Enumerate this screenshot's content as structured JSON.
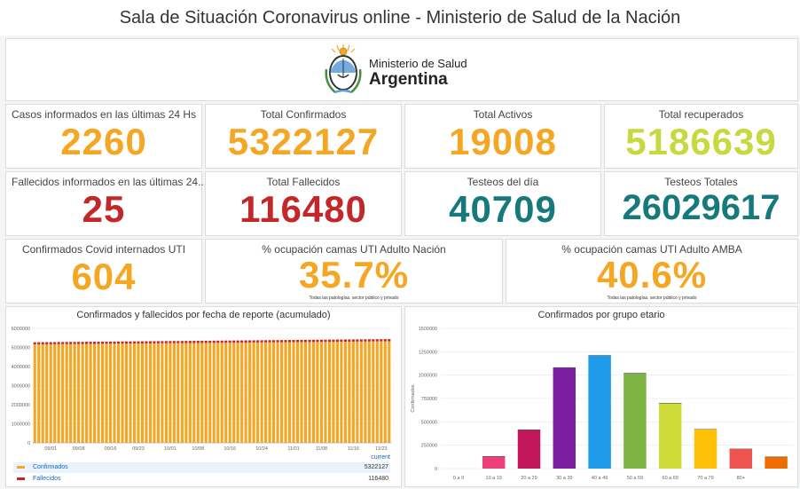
{
  "header": {
    "title": "Sala de Situación Coronavirus online - Ministerio de Salud de la Nación"
  },
  "logo": {
    "line1": "Ministerio de Salud",
    "line2": "Argentina"
  },
  "stats": {
    "casos_24h": {
      "label": "Casos informados en las últimas 24 Hs",
      "value": "2260",
      "color": "#f5a623"
    },
    "total_confirmados": {
      "label": "Total Confirmados",
      "value": "5322127",
      "color": "#f5a623"
    },
    "total_activos": {
      "label": "Total Activos",
      "value": "19008",
      "color": "#f5a623"
    },
    "total_recuperados": {
      "label": "Total recuperados",
      "value": "5186639",
      "color": "#c8d93f"
    },
    "fallecidos_24h": {
      "label": "Fallecidos informados en las últimas 24...",
      "value": "25",
      "color": "#c4272a"
    },
    "total_fallecidos": {
      "label": "Total Fallecidos",
      "value": "116480",
      "color": "#c4272a"
    },
    "testeos_dia": {
      "label": "Testeos del día",
      "value": "40709",
      "color": "#16797b"
    },
    "testeos_totales": {
      "label": "Testeos Totales",
      "value": "26029617",
      "color": "#16797b"
    },
    "internados_uti": {
      "label": "Confirmados Covid internados UTI",
      "value": "604",
      "color": "#f5a623"
    },
    "ocupacion_nacion": {
      "label": "% ocupación camas UTI Adulto Nación",
      "value": "35.7%",
      "note": "Todas las patologías, sector público y privado",
      "color": "#f5a623"
    },
    "ocupacion_amba": {
      "label": "% ocupación camas UTI Adulto AMBA",
      "value": "40.6%",
      "note": "Todas las patologías, sector público y privado",
      "color": "#f5a623"
    }
  },
  "chart_data": [
    {
      "type": "bar",
      "title": "Confirmados y fallecidos por fecha de reporte (acumulado)",
      "ylim": [
        0,
        6000000
      ],
      "y_ticks": [
        "0",
        "1000000",
        "2000000",
        "3000000",
        "4000000",
        "5000000",
        "6000000"
      ],
      "x_tick_labels": [
        "09/01",
        "09/08",
        "09/16",
        "09/23",
        "10/01",
        "10/08",
        "10/16",
        "10/24",
        "11/01",
        "11/08",
        "11/16",
        "11/23"
      ],
      "x_days": [
        "2021-08-28",
        "2021-11-25"
      ],
      "stacked": true,
      "grid": true,
      "series": [
        {
          "name": "Confirmados",
          "color": "#f5a623",
          "start": 5160000,
          "end": 5322127
        },
        {
          "name": "Fallecidos",
          "color": "#c4272a",
          "start": 111000,
          "end": 116480
        }
      ],
      "legend": {
        "header": "current",
        "placement": "bottom",
        "rows": [
          {
            "name": "Confirmados",
            "value": "5322127",
            "color": "#f5a623"
          },
          {
            "name": "Fallecidos",
            "value": "116480",
            "color": "#c4272a"
          }
        ]
      }
    },
    {
      "type": "bar",
      "title": "Confirmados por grupo etario",
      "ylabel": "Confirmados",
      "ylim": [
        0,
        1500000
      ],
      "y_ticks": [
        "0",
        "250000",
        "500000",
        "750000",
        "1000000",
        "1250000",
        "1500000"
      ],
      "grid": true,
      "categories": [
        "0 a 9",
        "10 a 19",
        "20 a 29",
        "30 a 39",
        "40 a 49",
        "50 a 59",
        "60 a 69",
        "70 a 79",
        "80+",
        ""
      ],
      "values": [
        0,
        130000,
        415000,
        1080000,
        1210000,
        1020000,
        700000,
        420000,
        210000,
        125000
      ],
      "colors": [
        "#e91e63",
        "#ec407a",
        "#c2185b",
        "#7b1fa2",
        "#1e9be9",
        "#7cb342",
        "#cddc39",
        "#ffc107",
        "#ef5350",
        "#ef6c00"
      ]
    }
  ]
}
